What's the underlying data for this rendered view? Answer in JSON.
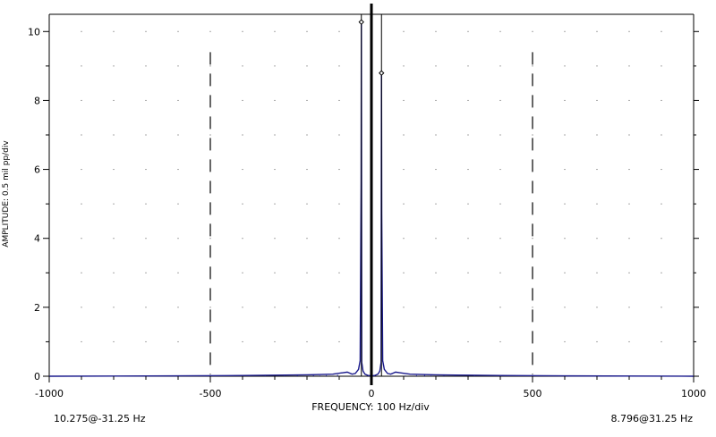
{
  "chart_data": {
    "type": "line",
    "xlabel": "FREQUENCY: 100 Hz/div",
    "ylabel": "AMPLITUDE: 0.5 mil pp/div",
    "xlim": [
      -1000,
      1000
    ],
    "ylim": [
      0,
      10.5
    ],
    "x_ticks": [
      -1000,
      -500,
      0,
      500,
      1000
    ],
    "y_ticks": [
      0,
      2,
      4,
      6,
      8,
      10
    ],
    "x_tick_labels": [
      "-1000",
      "-500",
      "0",
      "500",
      "1000"
    ],
    "y_tick_labels": [
      "0",
      "2",
      "4",
      "6",
      "8",
      "10"
    ],
    "grid": true,
    "dashed_reference_lines_x": [
      -500,
      500
    ],
    "center_line_x": 0,
    "series": [
      {
        "color": "#1a1a8c",
        "points": [
          [
            -1000,
            0
          ],
          [
            -600,
            0.01
          ],
          [
            -400,
            0.02
          ],
          [
            -300,
            0.03
          ],
          [
            -200,
            0.04
          ],
          [
            -120,
            0.06
          ],
          [
            -90,
            0.1
          ],
          [
            -75,
            0.12
          ],
          [
            -60,
            0.06
          ],
          [
            -50,
            0.08
          ],
          [
            -40,
            0.2
          ],
          [
            -35,
            0.45
          ],
          [
            -32,
            5.6
          ],
          [
            -31.25,
            10.275
          ],
          [
            -30,
            0.4
          ],
          [
            -26,
            0.15
          ],
          [
            -20,
            0.06
          ],
          [
            -10,
            0.02
          ],
          [
            0,
            0.01
          ],
          [
            10,
            0.02
          ],
          [
            20,
            0.06
          ],
          [
            26,
            0.15
          ],
          [
            30,
            0.4
          ],
          [
            31.25,
            8.796
          ],
          [
            32,
            4.7
          ],
          [
            35,
            0.45
          ],
          [
            40,
            0.2
          ],
          [
            50,
            0.08
          ],
          [
            60,
            0.06
          ],
          [
            75,
            0.12
          ],
          [
            90,
            0.1
          ],
          [
            120,
            0.06
          ],
          [
            200,
            0.04
          ],
          [
            300,
            0.03
          ],
          [
            400,
            0.02
          ],
          [
            600,
            0.01
          ],
          [
            1000,
            0
          ]
        ]
      }
    ],
    "cursors": [
      {
        "x": -31.25,
        "y": 10.275
      },
      {
        "x": 31.25,
        "y": 8.796
      }
    ]
  },
  "readouts": {
    "left": "10.275@-31.25 Hz",
    "right": "8.796@31.25 Hz"
  }
}
